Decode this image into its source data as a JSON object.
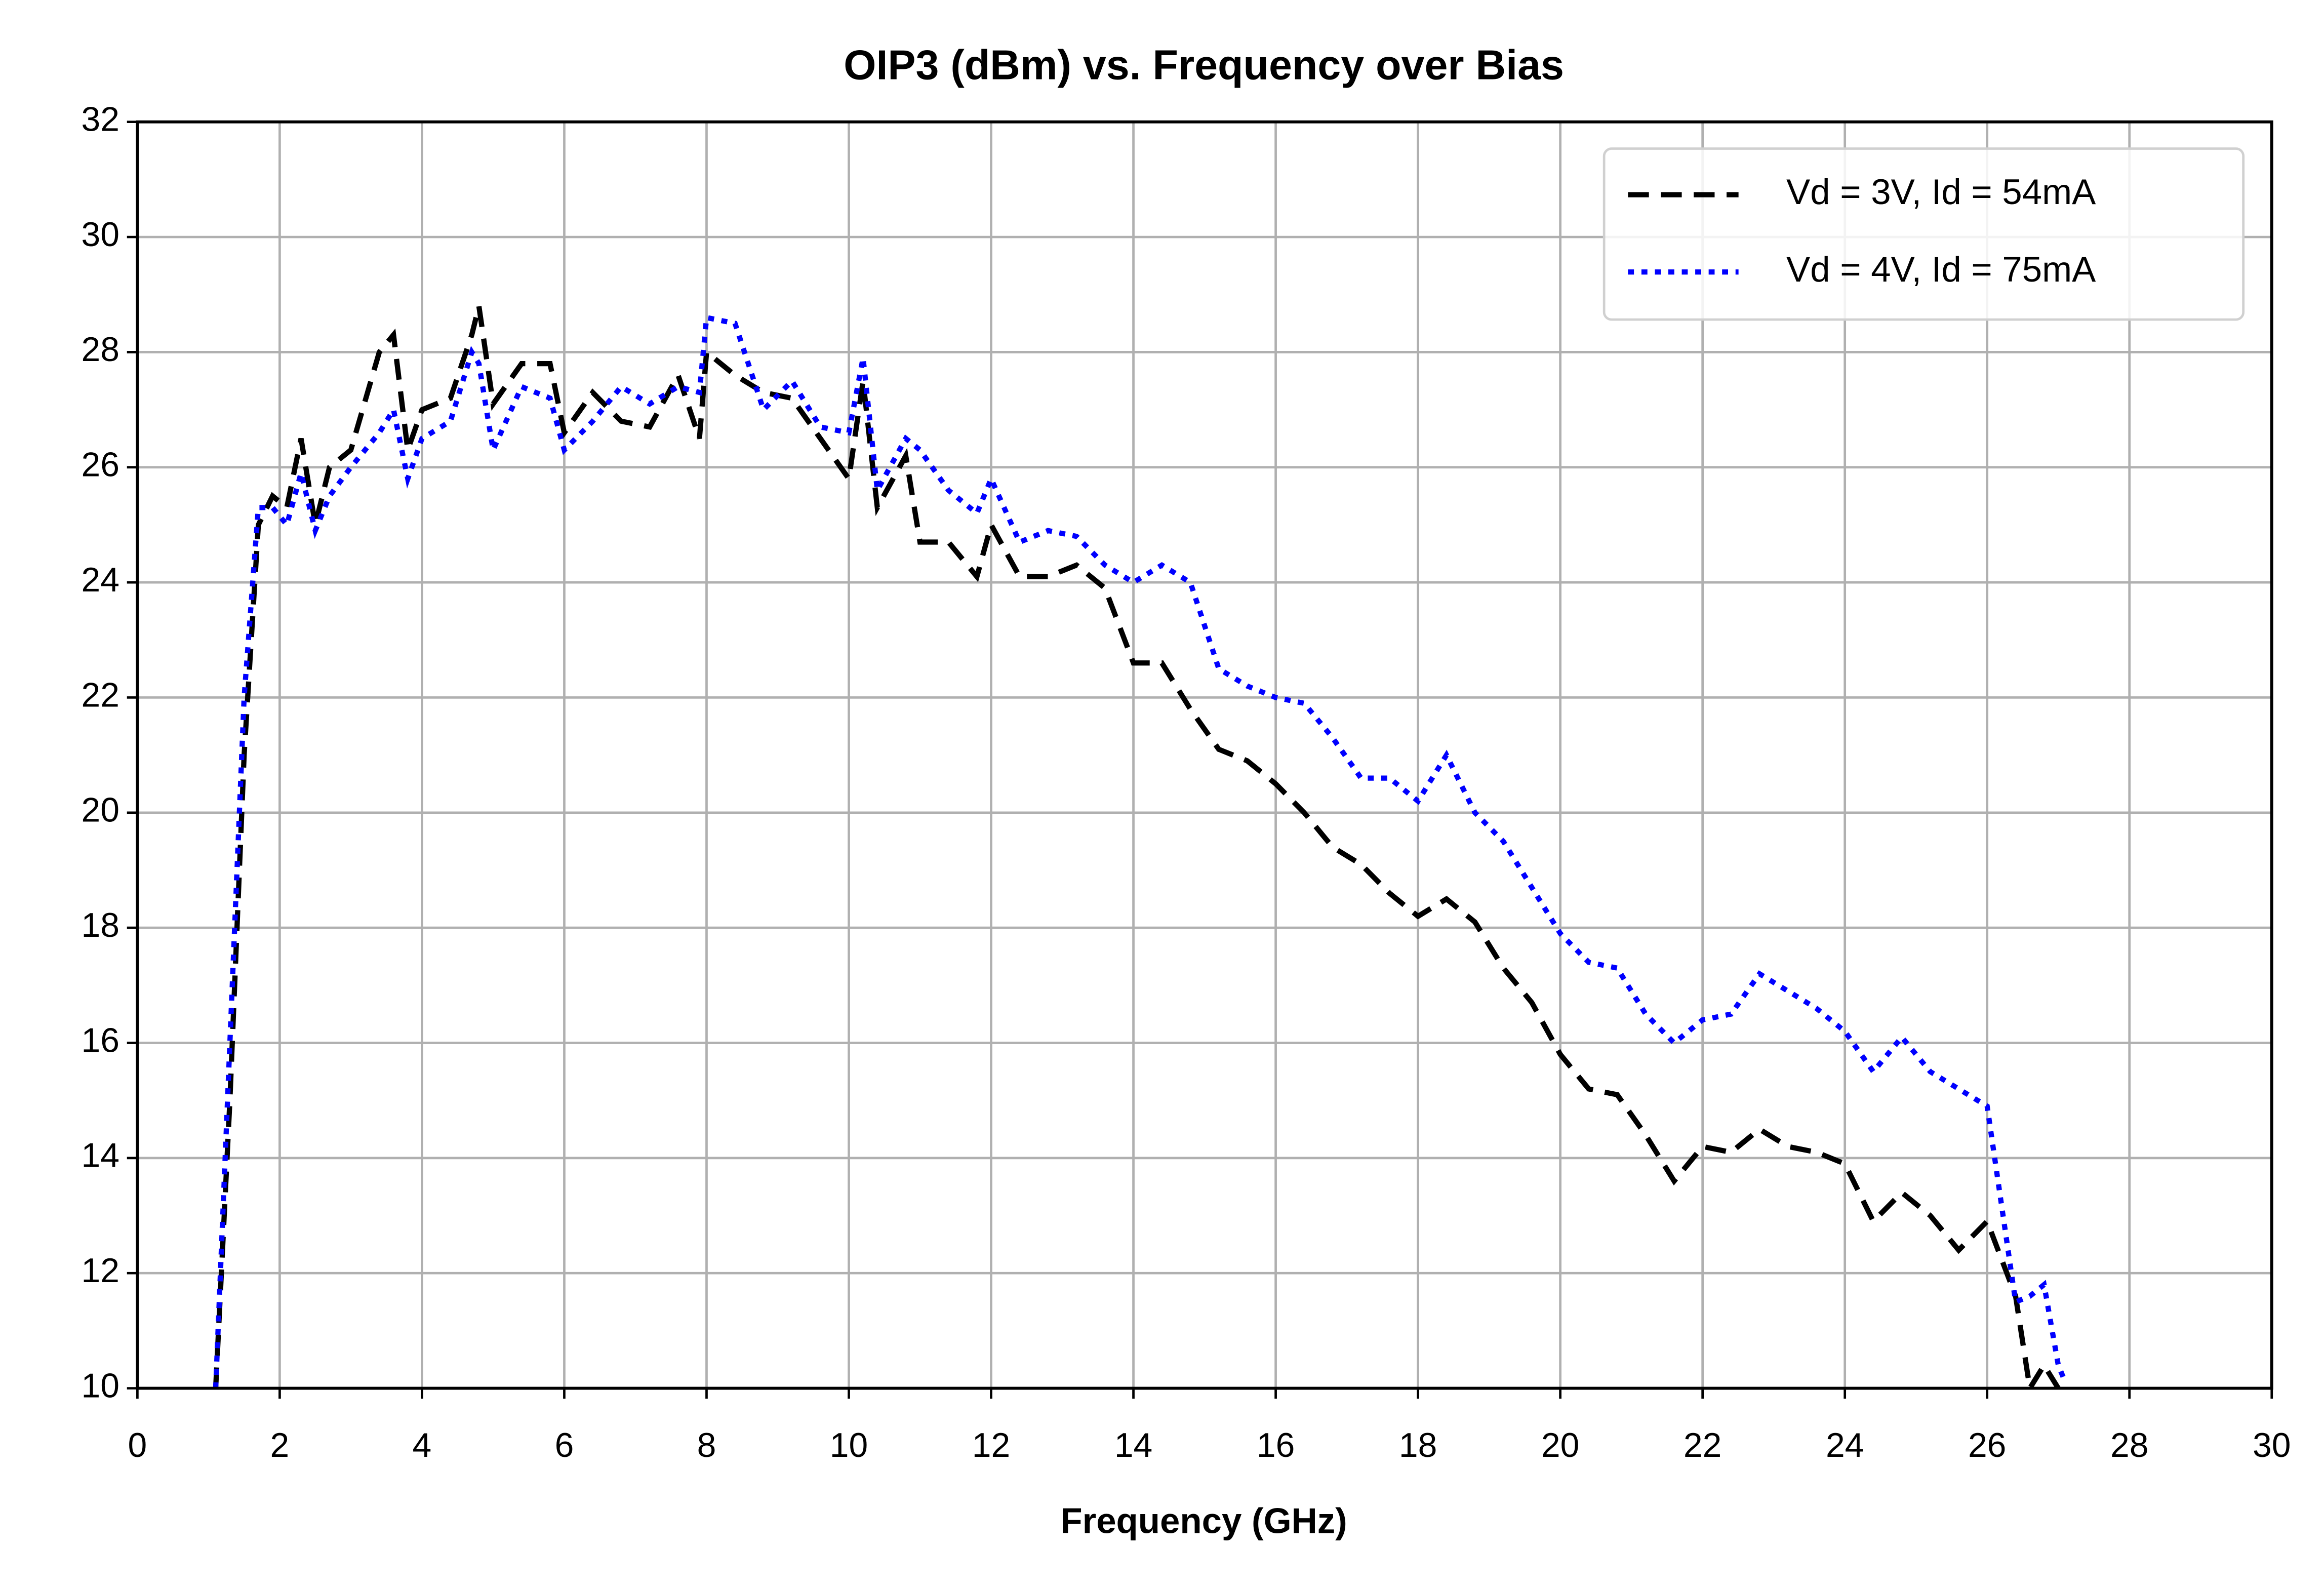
{
  "chart_data": {
    "type": "line",
    "title": "OIP3 (dBm) vs. Frequency over Bias",
    "x_label": "Frequency (GHz)",
    "x": [
      1.1,
      1.3,
      1.5,
      1.7,
      1.9,
      2.1,
      2.3,
      2.5,
      2.7,
      3.0,
      3.4,
      3.6,
      3.8,
      4.0,
      4.4,
      4.7,
      4.8,
      5.0,
      5.4,
      5.8,
      6.0,
      6.4,
      6.8,
      7.2,
      7.6,
      7.9,
      8.0,
      8.4,
      8.8,
      9.2,
      9.6,
      10.0,
      10.2,
      10.4,
      10.8,
      11.0,
      11.4,
      11.8,
      12.0,
      12.4,
      12.8,
      13.2,
      13.6,
      14.0,
      14.4,
      14.8,
      15.2,
      15.6,
      16.0,
      16.4,
      16.8,
      17.2,
      17.6,
      18.0,
      18.4,
      18.8,
      19.2,
      19.6,
      20.0,
      20.4,
      20.8,
      21.2,
      21.6,
      22.0,
      22.4,
      22.8,
      23.2,
      23.6,
      24.0,
      24.4,
      24.8,
      25.2,
      25.6,
      26.0,
      26.4,
      26.6,
      26.8,
      27.0,
      27.1
    ],
    "series": [
      {
        "name": "Vd = 3V, Id = 54mA",
        "color": "#000000",
        "style": "dashed",
        "values": [
          10,
          15,
          21,
          25,
          25.5,
          25.3,
          26.5,
          25,
          26,
          26.3,
          28,
          28.3,
          26.3,
          27,
          27.2,
          28.3,
          28.8,
          27.1,
          27.8,
          27.8,
          26.6,
          27.3,
          26.8,
          26.7,
          27.6,
          26.5,
          28,
          27.6,
          27.3,
          27.2,
          26.5,
          25.8,
          27.5,
          25.3,
          26.2,
          24.7,
          24.7,
          24.1,
          25,
          24.1,
          24.1,
          24.3,
          23.9,
          22.6,
          22.6,
          21.8,
          21.1,
          20.9,
          20.5,
          20,
          19.4,
          19.1,
          18.6,
          18.2,
          18.5,
          18.1,
          17.3,
          16.7,
          15.8,
          15.2,
          15.1,
          14.4,
          13.6,
          14.2,
          14.1,
          14.5,
          14.2,
          14.1,
          13.9,
          12.9,
          13.4,
          13,
          12.4,
          12.9,
          11.6,
          10,
          10.4,
          10,
          null
        ]
      },
      {
        "name": "Vd = 4V, Id = 75mA",
        "color": "#0000ff",
        "style": "dotted",
        "values": [
          10,
          16,
          22,
          25.3,
          25.3,
          25,
          25.9,
          24.9,
          25.5,
          26,
          26.6,
          27,
          25.8,
          26.5,
          26.8,
          28,
          27.8,
          26.3,
          27.4,
          27.2,
          26.3,
          26.8,
          27.4,
          27.1,
          27.4,
          27.3,
          28.6,
          28.5,
          27,
          27.5,
          26.7,
          26.6,
          27.9,
          25.6,
          26.5,
          26.3,
          25.6,
          25.2,
          25.8,
          24.7,
          24.9,
          24.8,
          24.3,
          24,
          24.3,
          24,
          22.5,
          22.2,
          22,
          21.9,
          21.3,
          20.6,
          20.6,
          20.2,
          21,
          20,
          19.5,
          18.7,
          17.9,
          17.4,
          17.3,
          16.5,
          16,
          16.4,
          16.5,
          17.2,
          16.9,
          16.6,
          16.2,
          15.5,
          16.1,
          15.5,
          15.2,
          14.9,
          11.5,
          11.6,
          11.8,
          10.4,
          10.1
        ]
      }
    ],
    "xlim": [
      0,
      30
    ],
    "xticks": [
      0,
      2,
      4,
      6,
      8,
      10,
      12,
      14,
      16,
      18,
      20,
      22,
      24,
      26,
      28,
      30
    ],
    "ylim": [
      10,
      32
    ],
    "yticks": [
      10,
      12,
      14,
      16,
      18,
      20,
      22,
      24,
      26,
      28,
      30,
      32
    ],
    "grid": true,
    "legend": "upper-right"
  }
}
